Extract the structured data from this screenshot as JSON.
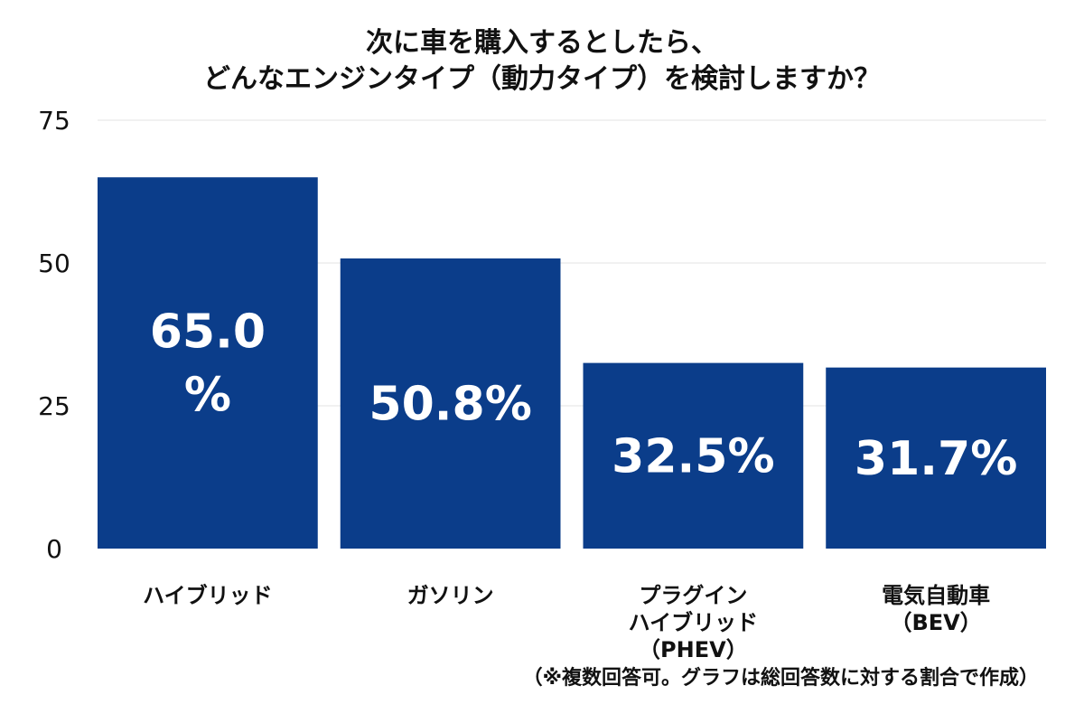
{
  "chart_data": {
    "type": "bar",
    "title_lines": [
      "次に車を購入するとしたら、",
      "どんなエンジンタイプ（動力タイプ）を検討しますか？"
    ],
    "categories": [
      [
        "ハイブリッド"
      ],
      [
        "ガソリン"
      ],
      [
        "プラグイン",
        "ハイブリッド",
        "（PHEV）"
      ],
      [
        "電気自動車",
        "（BEV）"
      ]
    ],
    "values": [
      65.0,
      50.8,
      32.5,
      31.7
    ],
    "data_labels": [
      [
        "65.0",
        "%"
      ],
      [
        "50.8%"
      ],
      [
        "32.5%"
      ],
      [
        "31.7%"
      ]
    ],
    "ylim": [
      0,
      75
    ],
    "yticks": [
      0,
      25,
      50,
      75
    ],
    "grid": true,
    "bar_color": "#0b3d8a",
    "label_color": "#ffffff",
    "footnote": "（※複数回答可。グラフは総回答数に対する割合で作成）"
  }
}
